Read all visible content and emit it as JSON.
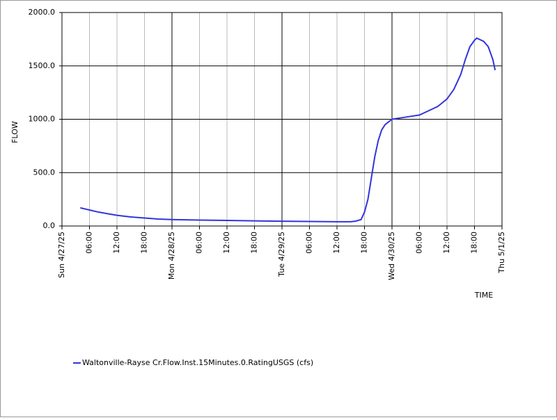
{
  "chart_data": {
    "type": "line",
    "x_label": "TIME",
    "y_label": "FLOW",
    "x": [
      "2025-04-27T04:00",
      "2025-04-27T06:00",
      "2025-04-27T08:00",
      "2025-04-27T10:00",
      "2025-04-27T12:00",
      "2025-04-27T15:00",
      "2025-04-27T18:00",
      "2025-04-27T21:00",
      "2025-04-28T00:00",
      "2025-04-28T06:00",
      "2025-04-28T12:00",
      "2025-04-28T18:00",
      "2025-04-29T00:00",
      "2025-04-29T06:00",
      "2025-04-29T12:00",
      "2025-04-29T15:00",
      "2025-04-29T16:00",
      "2025-04-29T17:15",
      "2025-04-29T18:00",
      "2025-04-29T18:45",
      "2025-04-29T19:30",
      "2025-04-29T20:15",
      "2025-04-29T21:00",
      "2025-04-29T21:45",
      "2025-04-29T22:30",
      "2025-04-30T00:00",
      "2025-04-30T03:00",
      "2025-04-30T06:00",
      "2025-04-30T08:00",
      "2025-04-30T10:00",
      "2025-04-30T12:00",
      "2025-04-30T13:30",
      "2025-04-30T15:00",
      "2025-04-30T16:00",
      "2025-04-30T17:00",
      "2025-04-30T18:00",
      "2025-04-30T18:30",
      "2025-04-30T19:00",
      "2025-04-30T20:00",
      "2025-04-30T21:00",
      "2025-04-30T22:00",
      "2025-04-30T22:30"
    ],
    "series": [
      {
        "name": "Waltonville-Rayse Cr.Flow.Inst.15Minutes.0.RatingUSGS (cfs)",
        "color": "#3333dd",
        "values": [
          170,
          150,
          130,
          115,
          100,
          85,
          75,
          65,
          60,
          55,
          52,
          48,
          45,
          42,
          40,
          40,
          45,
          60,
          130,
          250,
          450,
          650,
          800,
          900,
          950,
          1000,
          1020,
          1040,
          1080,
          1120,
          1190,
          1280,
          1420,
          1560,
          1680,
          1740,
          1760,
          1750,
          1730,
          1680,
          1560,
          1460
        ]
      }
    ],
    "xlim": [
      "2025-04-27T00:00",
      "2025-05-01T00:00"
    ],
    "xticks": [
      {
        "value": "2025-04-27T00:00",
        "label": "Sun 4/27/25"
      },
      {
        "value": "2025-04-27T06:00",
        "label": "06:00"
      },
      {
        "value": "2025-04-27T12:00",
        "label": "12:00"
      },
      {
        "value": "2025-04-27T18:00",
        "label": "18:00"
      },
      {
        "value": "2025-04-28T00:00",
        "label": "Mon 4/28/25"
      },
      {
        "value": "2025-04-28T06:00",
        "label": "06:00"
      },
      {
        "value": "2025-04-28T12:00",
        "label": "12:00"
      },
      {
        "value": "2025-04-28T18:00",
        "label": "18:00"
      },
      {
        "value": "2025-04-29T00:00",
        "label": "Tue 4/29/25"
      },
      {
        "value": "2025-04-29T06:00",
        "label": "06:00"
      },
      {
        "value": "2025-04-29T12:00",
        "label": "12:00"
      },
      {
        "value": "2025-04-29T18:00",
        "label": "18:00"
      },
      {
        "value": "2025-04-30T00:00",
        "label": "Wed 4/30/25"
      },
      {
        "value": "2025-04-30T06:00",
        "label": "06:00"
      },
      {
        "value": "2025-04-30T12:00",
        "label": "12:00"
      },
      {
        "value": "2025-04-30T18:00",
        "label": "18:00"
      },
      {
        "value": "2025-05-01T00:00",
        "label": "Thu 5/1/25"
      }
    ],
    "ylim": [
      0,
      2000
    ],
    "yticks": [
      {
        "value": 0,
        "label": "0.0"
      },
      {
        "value": 500,
        "label": "500.0"
      },
      {
        "value": 1000,
        "label": "1000.0"
      },
      {
        "value": 1500,
        "label": "1500.0"
      },
      {
        "value": 2000,
        "label": "2000.0"
      }
    ],
    "grid": true,
    "legend": "bottom-left"
  }
}
